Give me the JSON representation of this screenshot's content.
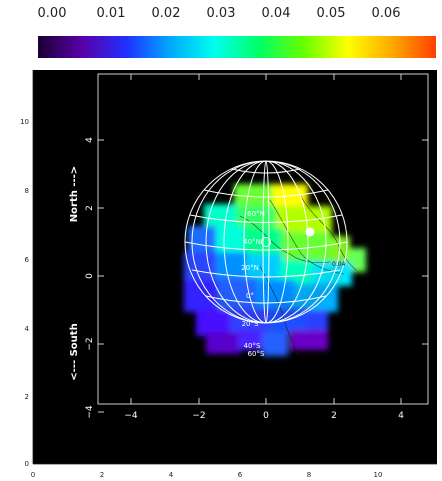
{
  "colorbar": {
    "tick_labels": [
      "0.00",
      "0.01",
      "0.02",
      "0.03",
      "0.04",
      "0.05",
      "0.06"
    ],
    "colors": [
      "#1a0033",
      "#5a00a8",
      "#2030ff",
      "#00aaff",
      "#00ffee",
      "#00ff66",
      "#66ff00",
      "#ffff00",
      "#ffaa00",
      "#ff4000"
    ]
  },
  "map": {
    "background": "#000000",
    "y_axis_label_top": "North --->",
    "y_axis_label_bottom": "<--- South",
    "inner_x_ticks": [
      "−4",
      "−2",
      "0",
      "2",
      "4"
    ],
    "inner_y_ticks": [
      "4",
      "2",
      "0",
      "−2",
      "−4"
    ],
    "outer_x_ticks": [
      "0",
      "2",
      "4",
      "6",
      "8",
      "10"
    ],
    "outer_y_ticks": [
      "0",
      "2",
      "4",
      "6",
      "8",
      "10"
    ],
    "latitude_labels": [
      "60°N",
      "40°N",
      "20°N",
      "0°",
      "20°S",
      "40°S",
      "60°S"
    ],
    "contour_label": "0.04"
  },
  "chart_data": {
    "type": "heatmap",
    "title": "",
    "xlabel": "",
    "ylabel": "North ---> / <--- South",
    "colorbar_range": [
      0.0,
      0.065
    ],
    "inner_xlim": [
      -5.2,
      5.2
    ],
    "inner_ylim": [
      -5.2,
      5.2
    ],
    "outer_xlim": [
      0,
      11
    ],
    "outer_ylim": [
      0,
      11
    ],
    "globe_radius": 2.4,
    "grid": true,
    "markers": [
      {
        "name": "center",
        "x": 0.0,
        "y": 0.0,
        "filled": false
      },
      {
        "name": "sub-point",
        "x": 1.3,
        "y": 0.35,
        "filled": true
      }
    ]
  }
}
